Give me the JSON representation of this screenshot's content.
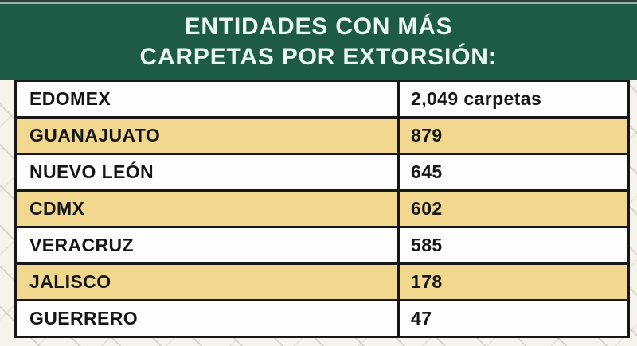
{
  "header": {
    "line1": "ENTIDADES CON MÁS",
    "line2": "CARPETAS POR EXTORSIÓN:"
  },
  "table": {
    "rows": [
      {
        "entity": "EDOMEX",
        "value": "2,049 carpetas",
        "highlighted": false
      },
      {
        "entity": "GUANAJUATO",
        "value": "879",
        "highlighted": true
      },
      {
        "entity": "NUEVO LEÓN",
        "value": "645",
        "highlighted": false
      },
      {
        "entity": "CDMX",
        "value": "602",
        "highlighted": true
      },
      {
        "entity": "VERACRUZ",
        "value": "585",
        "highlighted": false
      },
      {
        "entity": "JALISCO",
        "value": "178",
        "highlighted": true
      },
      {
        "entity": "GUERRERO",
        "value": "47",
        "highlighted": false
      }
    ]
  },
  "chart_data": {
    "type": "table",
    "title": "ENTIDADES CON MÁS CARPETAS POR EXTORSIÓN:",
    "categories": [
      "EDOMEX",
      "GUANAJUATO",
      "NUEVO LEÓN",
      "CDMX",
      "VERACRUZ",
      "JALISCO",
      "GUERRERO"
    ],
    "values": [
      2049,
      879,
      645,
      602,
      585,
      178,
      47
    ],
    "unit": "carpetas"
  },
  "colors": {
    "header_bg": "#1e5b46",
    "header_text": "#eaf6f0",
    "highlight_row": "#f2d88e",
    "row_bg": "#fdfdfb",
    "border": "#17171a",
    "page_bg": "#f5f3eb"
  }
}
